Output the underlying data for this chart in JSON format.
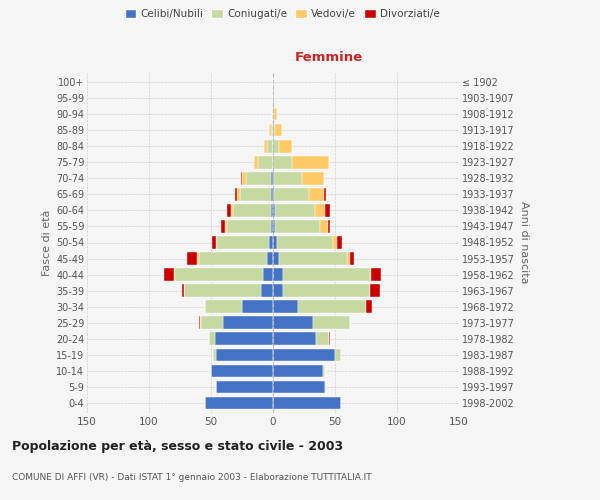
{
  "age_groups": [
    "0-4",
    "5-9",
    "10-14",
    "15-19",
    "20-24",
    "25-29",
    "30-34",
    "35-39",
    "40-44",
    "45-49",
    "50-54",
    "55-59",
    "60-64",
    "65-69",
    "70-74",
    "75-79",
    "80-84",
    "85-89",
    "90-94",
    "95-99",
    "100+"
  ],
  "birth_years": [
    "1998-2002",
    "1993-1997",
    "1988-1992",
    "1983-1987",
    "1978-1982",
    "1973-1977",
    "1968-1972",
    "1963-1967",
    "1958-1962",
    "1953-1957",
    "1948-1952",
    "1943-1947",
    "1938-1942",
    "1933-1937",
    "1928-1932",
    "1923-1927",
    "1918-1922",
    "1913-1917",
    "1908-1912",
    "1903-1907",
    "≤ 1902"
  ],
  "male": {
    "celibi": [
      55,
      46,
      50,
      46,
      47,
      40,
      25,
      10,
      8,
      5,
      3,
      2,
      2,
      2,
      2,
      0,
      0,
      0,
      0,
      0,
      0
    ],
    "coniugati": [
      0,
      0,
      0,
      2,
      5,
      18,
      30,
      62,
      72,
      55,
      42,
      35,
      30,
      25,
      20,
      12,
      5,
      2,
      1,
      0,
      0
    ],
    "vedovi": [
      0,
      0,
      0,
      0,
      0,
      1,
      0,
      0,
      0,
      1,
      1,
      2,
      2,
      2,
      3,
      3,
      2,
      1,
      0,
      0,
      0
    ],
    "divorziati": [
      0,
      0,
      0,
      0,
      0,
      1,
      0,
      1,
      8,
      8,
      3,
      3,
      3,
      2,
      1,
      0,
      0,
      0,
      0,
      0,
      0
    ]
  },
  "female": {
    "nubili": [
      55,
      42,
      40,
      50,
      35,
      32,
      20,
      8,
      8,
      5,
      3,
      2,
      2,
      1,
      1,
      0,
      0,
      0,
      0,
      0,
      0
    ],
    "coniugate": [
      0,
      1,
      2,
      5,
      10,
      30,
      55,
      70,
      70,
      55,
      45,
      36,
      32,
      28,
      22,
      15,
      5,
      2,
      1,
      0,
      0
    ],
    "vedove": [
      0,
      0,
      0,
      0,
      0,
      0,
      0,
      0,
      1,
      2,
      4,
      6,
      8,
      12,
      18,
      30,
      10,
      5,
      2,
      1,
      0
    ],
    "divorziate": [
      0,
      0,
      0,
      0,
      1,
      0,
      5,
      8,
      8,
      3,
      4,
      2,
      4,
      2,
      0,
      0,
      0,
      0,
      0,
      0,
      0
    ]
  },
  "colors": {
    "celibi": "#4472c4",
    "coniugati": "#c5d9a0",
    "vedovi": "#ffc966",
    "divorziati": "#cc0000"
  },
  "title": "Popolazione per età, sesso e stato civile - 2003",
  "subtitle": "COMUNE DI AFFI (VR) - Dati ISTAT 1° gennaio 2003 - Elaborazione TUTTITALIA.IT",
  "ylabel_left": "Fasce di età",
  "ylabel_right": "Anni di nascita",
  "xlabel_right": "Femmine",
  "xlim": 150,
  "background_color": "#f5f5f5",
  "plot_bg": "#f5f5f5",
  "grid_color": "#cccccc"
}
